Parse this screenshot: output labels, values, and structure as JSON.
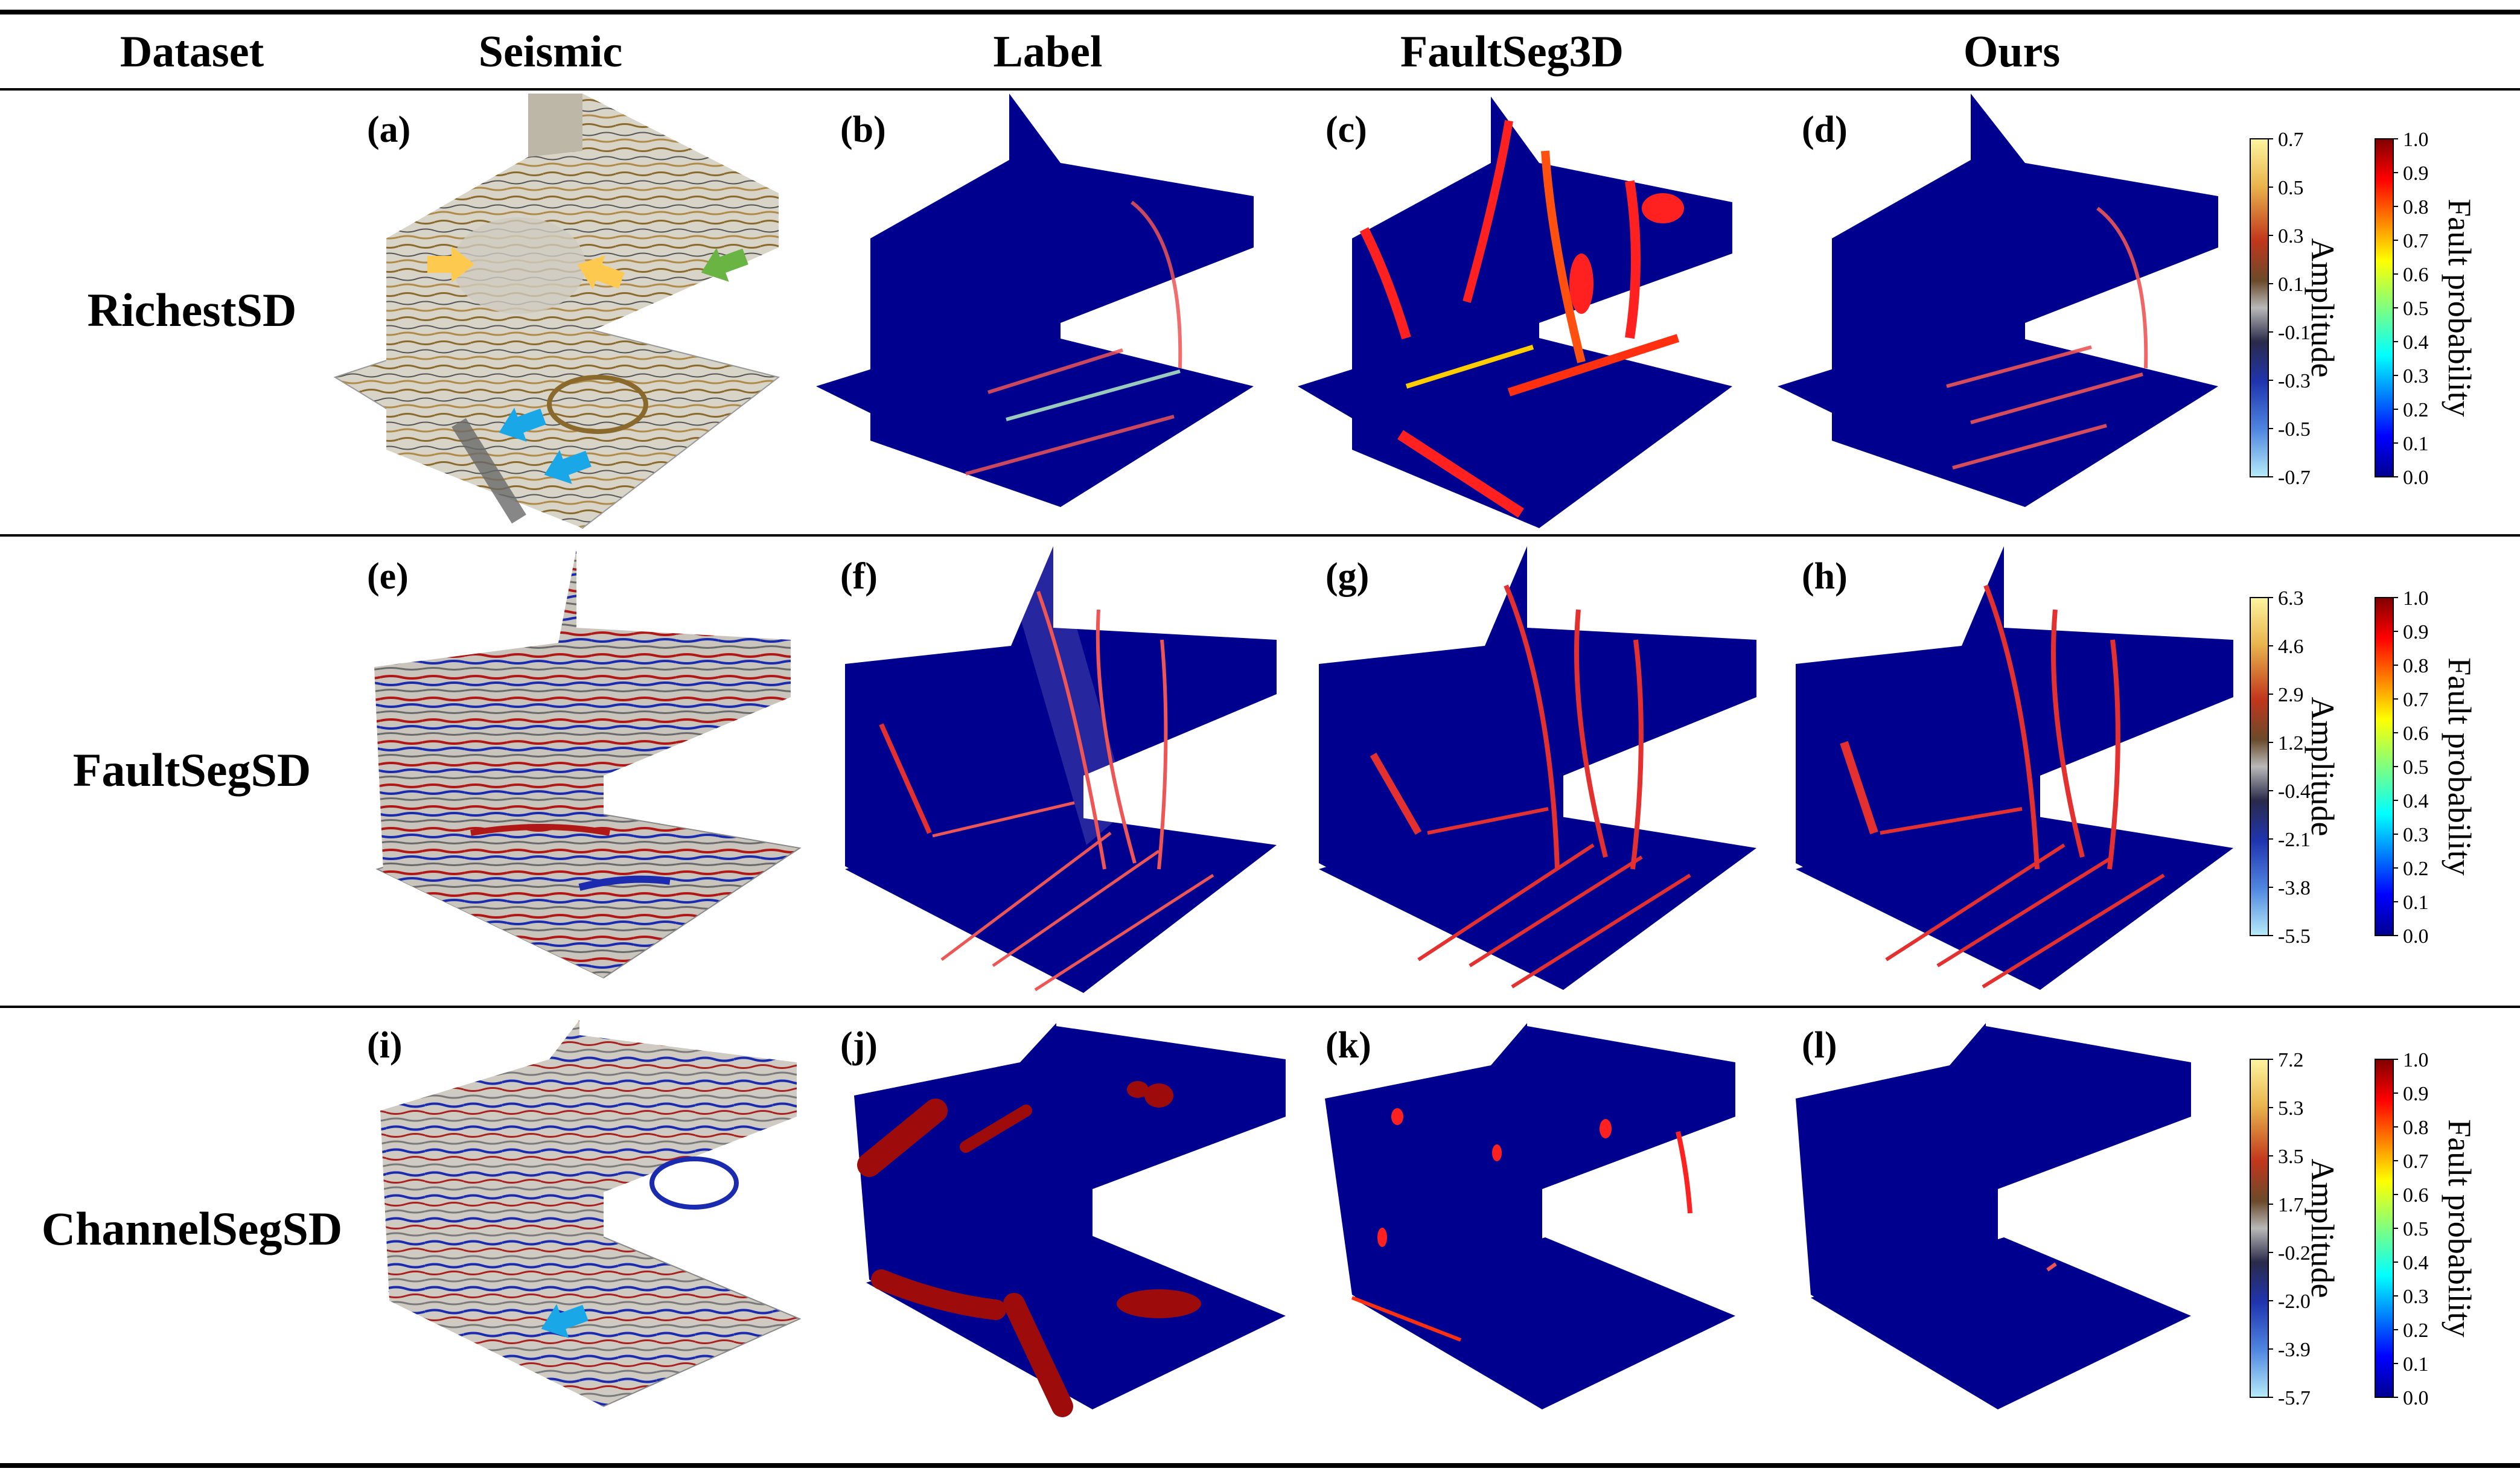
{
  "headers": [
    "Dataset",
    "Seismic",
    "Label",
    "FaultSeg3D",
    "Ours"
  ],
  "rows": [
    {
      "dataset": "RichestSD",
      "panel_labels": [
        "(a)",
        "(b)",
        "(c)",
        "(d)"
      ],
      "amplitude": {
        "title": "Amplitude",
        "ticks": [
          "0.7",
          "0.5",
          "0.3",
          "0.1",
          "-0.1",
          "-0.3",
          "-0.5",
          "-0.7"
        ]
      },
      "probability": {
        "title": "Fault probability",
        "ticks": [
          "1.0",
          "0.9",
          "0.8",
          "0.7",
          "0.6",
          "0.5",
          "0.4",
          "0.3",
          "0.2",
          "0.1",
          "0.0"
        ]
      }
    },
    {
      "dataset": "FaultSegSD",
      "panel_labels": [
        "(e)",
        "(f)",
        "(g)",
        "(h)"
      ],
      "amplitude": {
        "title": "Amplitude",
        "ticks": [
          "6.3",
          "4.6",
          "2.9",
          "1.2",
          "-0.4",
          "-2.1",
          "-3.8",
          "-5.5"
        ]
      },
      "probability": {
        "title": "Fault probability",
        "ticks": [
          "1.0",
          "0.9",
          "0.8",
          "0.7",
          "0.6",
          "0.5",
          "0.4",
          "0.3",
          "0.2",
          "0.1",
          "0.0"
        ]
      }
    },
    {
      "dataset": "ChannelSegSD",
      "panel_labels": [
        "(i)",
        "(j)",
        "(k)",
        "(l)"
      ],
      "amplitude": {
        "title": "Amplitude",
        "ticks": [
          "7.2",
          "5.3",
          "3.5",
          "1.7",
          "-0.2",
          "-2.0",
          "-3.9",
          "-5.7"
        ]
      },
      "probability": {
        "title": "Fault probability",
        "ticks": [
          "1.0",
          "0.9",
          "0.8",
          "0.7",
          "0.6",
          "0.5",
          "0.4",
          "0.3",
          "0.2",
          "0.1",
          "0.0"
        ]
      }
    }
  ],
  "colors": {
    "background_blue": "#00008f",
    "fault_red": "#c81414",
    "seismic_base": "#d8d4c8",
    "seismic_brown": "#8a6a2c",
    "arrow_yellow": "#fdc94e",
    "arrow_green": "#6ab443",
    "arrow_cyan": "#1aa7e8"
  },
  "icons": [
    "arrow-yellow-icon",
    "arrow-green-icon",
    "arrow-cyan-icon"
  ]
}
